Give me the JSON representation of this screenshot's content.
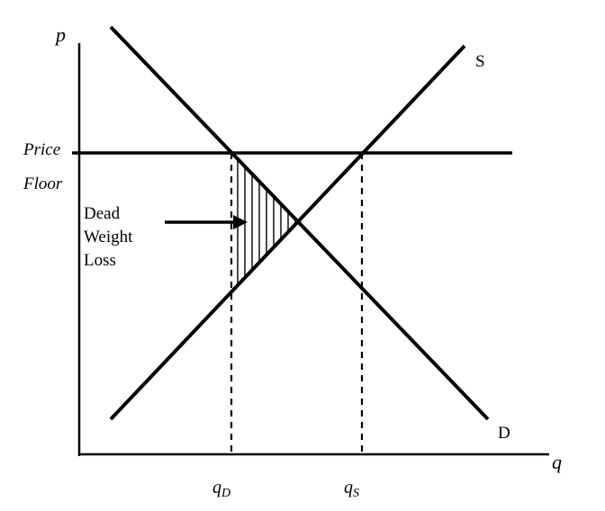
{
  "axes": {
    "y_label": "p",
    "x_label": "q"
  },
  "curves": {
    "supply_label": "S",
    "demand_label": "D"
  },
  "price_floor": {
    "line1": "Price",
    "line2": "Floor"
  },
  "deadweight_loss": {
    "line1": "Dead",
    "line2": "Weight",
    "line3": "Loss"
  },
  "quantities": {
    "qd_main": "q",
    "qd_sub": "D",
    "qs_main": "q",
    "qs_sub": "S"
  }
}
